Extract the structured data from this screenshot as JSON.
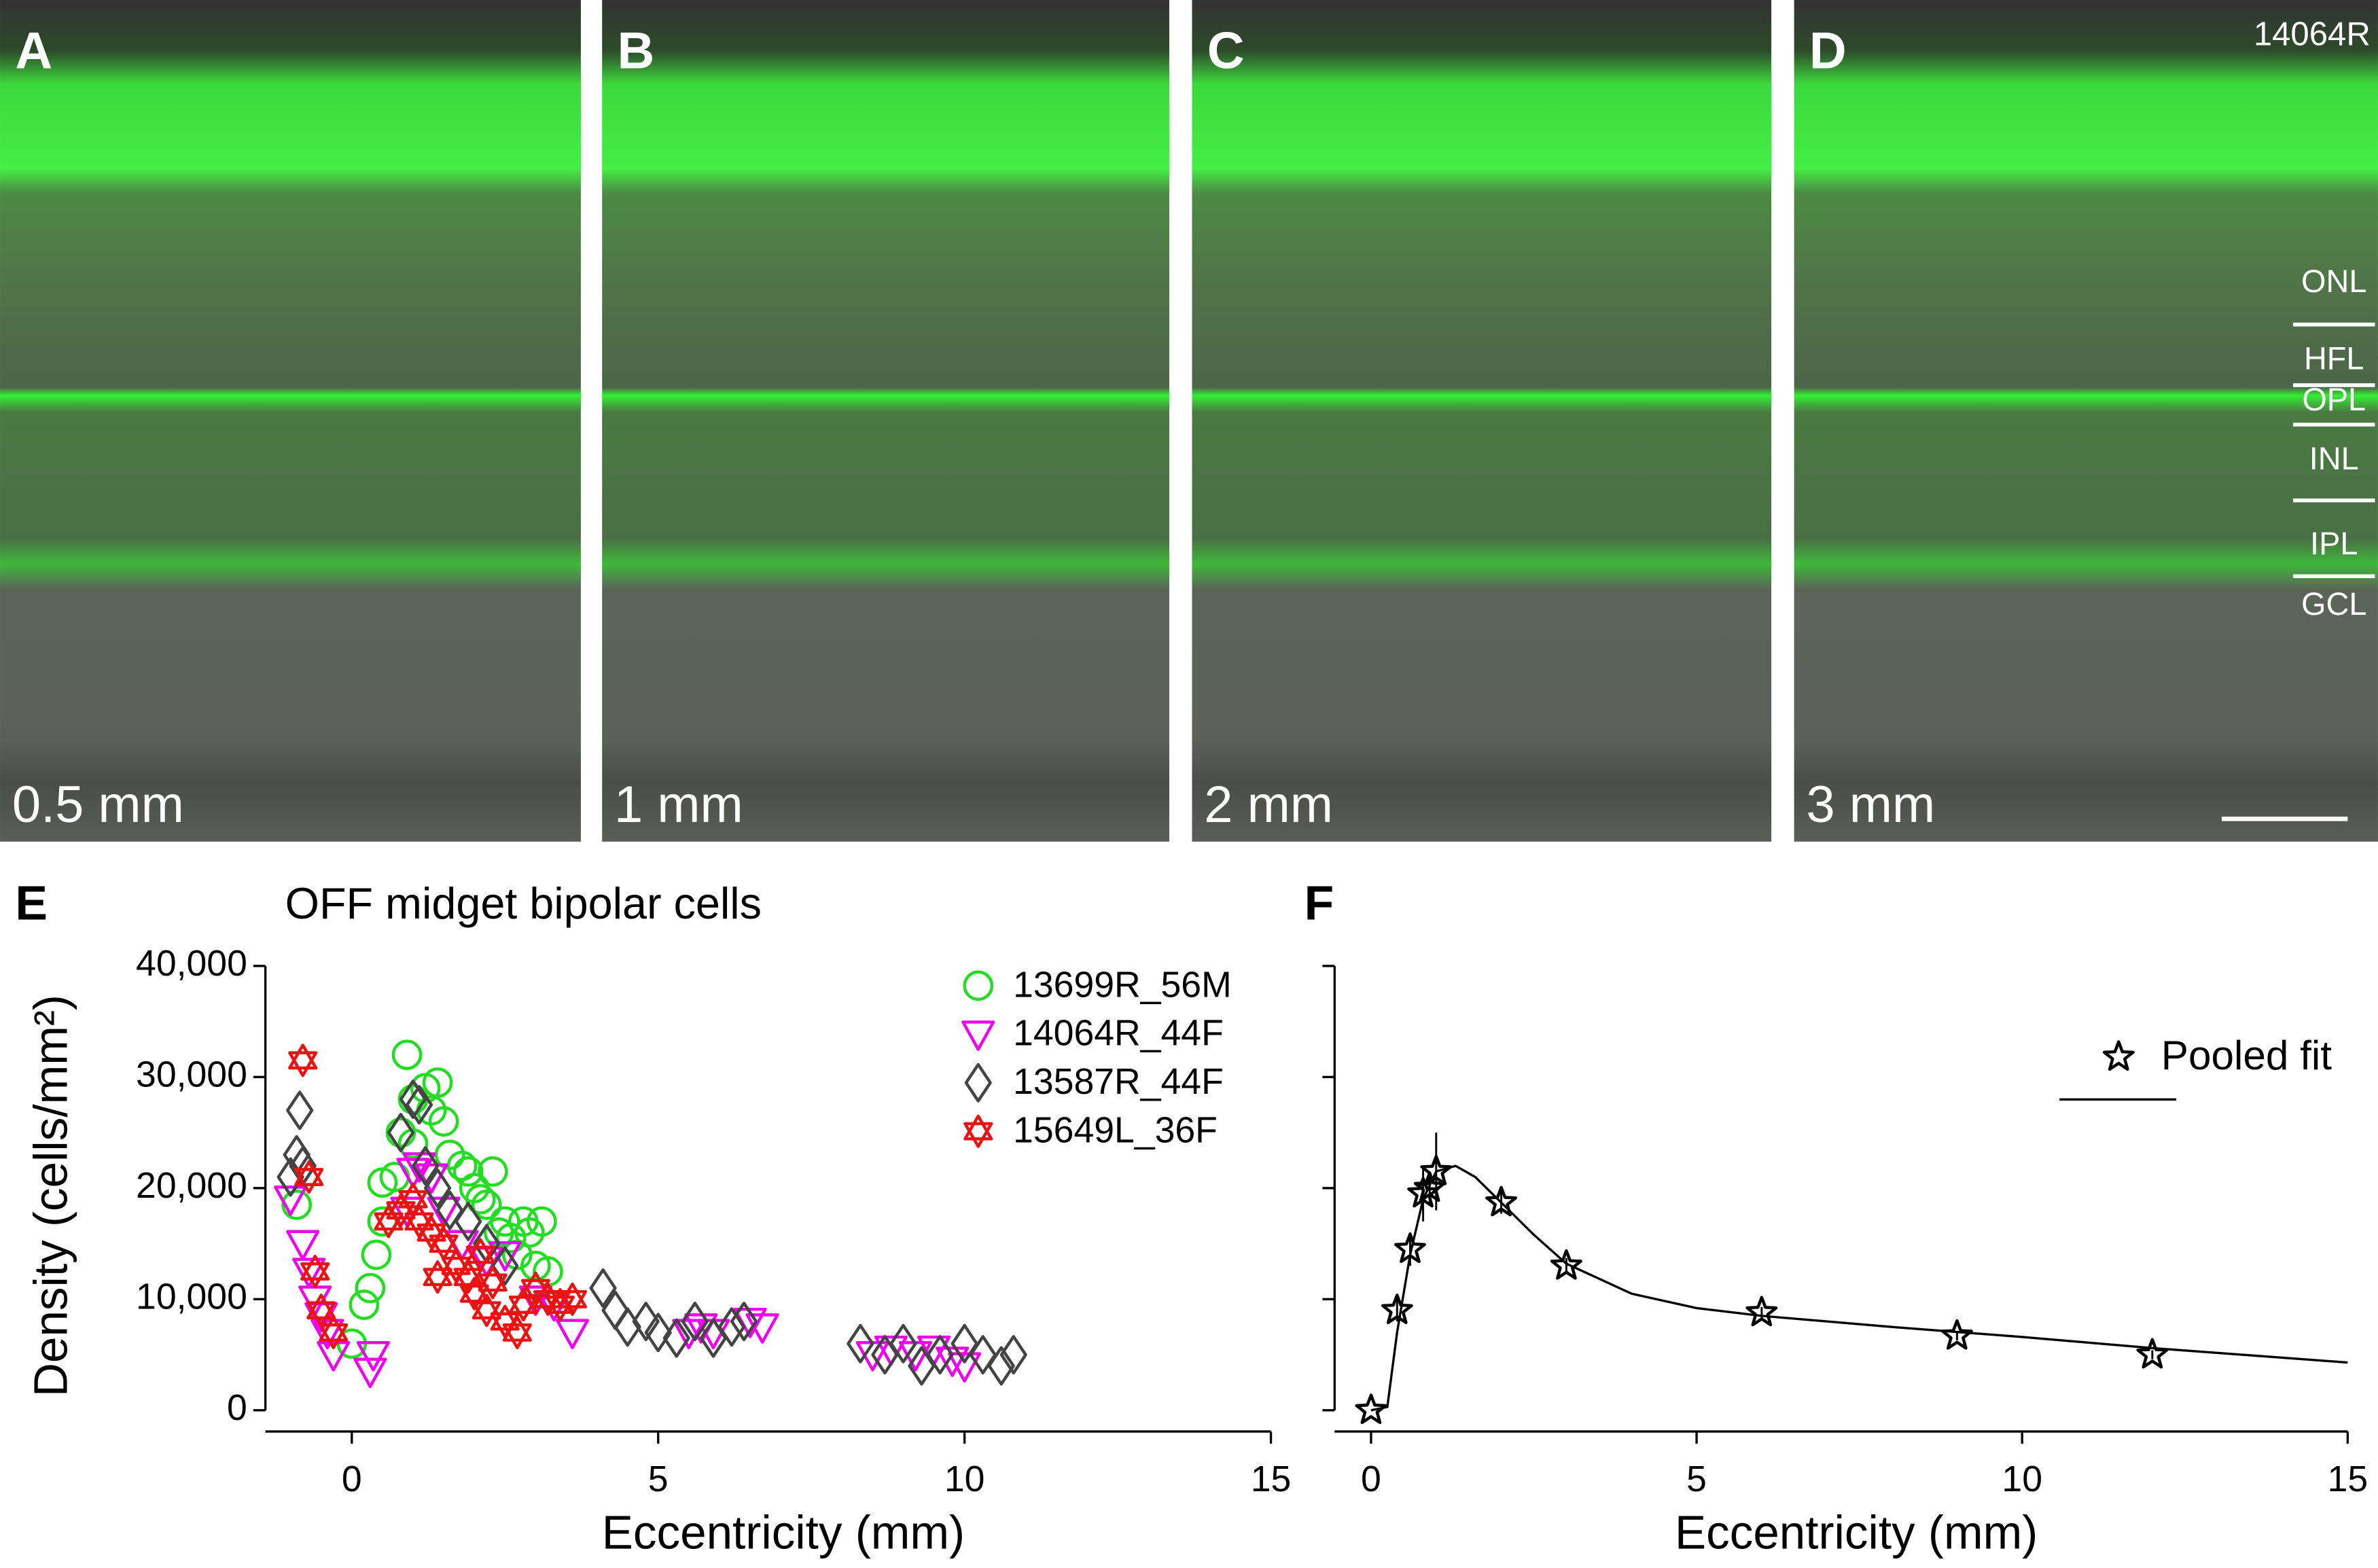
{
  "images": {
    "sample": "14064R",
    "panels": [
      {
        "letter": "A",
        "eccentricity": "0.5 mm"
      },
      {
        "letter": "B",
        "eccentricity": "1 mm"
      },
      {
        "letter": "C",
        "eccentricity": "2 mm"
      },
      {
        "letter": "D",
        "eccentricity": "3 mm"
      }
    ],
    "layers": [
      "ONL",
      "HFL",
      "OPL",
      "INL",
      "IPL",
      "GCL"
    ]
  },
  "chart_data": [
    {
      "type": "scatter",
      "panel": "E",
      "title": "OFF midget bipolar cells",
      "xlabel": "Eccentricity (mm)",
      "ylabel": "Density (cells/mm²)",
      "xlim": [
        -1.41,
        15
      ],
      "ylim": [
        0,
        40000
      ],
      "xticks": [
        0,
        5,
        10,
        15
      ],
      "yticks": [
        0,
        {
          "value": 10000,
          "label": "10,000"
        },
        {
          "value": 20000,
          "label": "20,000"
        },
        {
          "value": 30000,
          "label": "30,000"
        },
        {
          "value": 40000,
          "label": "40,000"
        }
      ],
      "legend": "upper right",
      "series": [
        {
          "name": "13699R_56M",
          "color": "#22dd22",
          "marker": "circle",
          "x": [
            -0.9,
            0,
            0.2,
            0.3,
            0.4,
            0.5,
            0.5,
            0.7,
            0.8,
            0.9,
            1,
            1,
            1.2,
            1.3,
            1.4,
            1.5,
            1.6,
            1.8,
            1.9,
            2,
            2.2,
            2.3,
            2.5,
            2.6,
            2.8,
            2.9,
            3.1,
            3,
            3.2,
            2.7,
            2.4,
            2.1
          ],
          "y": [
            18500,
            6000,
            9500,
            11000,
            14000,
            17000,
            20500,
            21000,
            25000,
            32000,
            28000,
            24000,
            29000,
            27000,
            29500,
            26000,
            23000,
            22000,
            21500,
            20000,
            18500,
            21500,
            17000,
            15500,
            17000,
            16000,
            17000,
            13000,
            12500,
            14000,
            16000,
            19000
          ]
        },
        {
          "name": "14064R_44F",
          "color": "#ee00ee",
          "marker": "triangle-down",
          "x": [
            -1,
            -0.8,
            -0.7,
            -0.6,
            -0.5,
            -0.4,
            -0.3,
            0.3,
            0.35,
            0.9,
            1,
            1.1,
            1.3,
            1.5,
            1.8,
            2.2,
            2.5,
            3,
            3.3,
            3.6,
            5.5,
            5.7,
            5.9,
            6.5,
            6.7,
            8.5,
            8.8,
            9.2,
            9.5,
            9.8,
            10
          ],
          "y": [
            19000,
            15000,
            12500,
            10000,
            8500,
            7000,
            5000,
            3500,
            5000,
            18000,
            21500,
            22000,
            21000,
            18000,
            15000,
            13500,
            14000,
            10000,
            9500,
            7000,
            7000,
            7500,
            7000,
            8000,
            7500,
            5000,
            5500,
            5000,
            5500,
            4500,
            4000
          ]
        },
        {
          "name": "13587R_44F",
          "color": "#444444",
          "marker": "diamond",
          "x": [
            -1,
            -0.9,
            -0.85,
            -0.8,
            0.8,
            1,
            1.1,
            1.2,
            1.4,
            1.6,
            1.9,
            2.2,
            2.5,
            4.1,
            4.3,
            4.5,
            4.8,
            5,
            5.3,
            5.6,
            5.9,
            6.2,
            6.4,
            8.3,
            8.7,
            9,
            9.3,
            9.6,
            10,
            10.3,
            10.6,
            10.8
          ],
          "y": [
            21000,
            23000,
            27000,
            22000,
            25000,
            28000,
            27500,
            22000,
            20000,
            18000,
            17000,
            15000,
            13000,
            11000,
            9000,
            7500,
            8000,
            7000,
            6500,
            8000,
            6500,
            7500,
            8000,
            6000,
            5000,
            6000,
            4000,
            5000,
            6000,
            5000,
            4000,
            5000
          ]
        },
        {
          "name": "15649L_36F",
          "color": "#ee1111",
          "marker": "hexagram",
          "x": [
            -0.8,
            -0.7,
            -0.6,
            -0.5,
            -0.3,
            0.6,
            0.8,
            1,
            1.1,
            1.3,
            1.5,
            1.7,
            1.9,
            2,
            2.2,
            2.3,
            2.5,
            2.7,
            2.8,
            3,
            3.2,
            3.4,
            3.6,
            2.1,
            1.4
          ],
          "y": [
            31500,
            21000,
            12500,
            9000,
            7000,
            17000,
            18000,
            19000,
            17000,
            16000,
            15000,
            13000,
            12000,
            10500,
            9000,
            11500,
            8000,
            7000,
            9500,
            11000,
            10000,
            9500,
            10000,
            14000,
            12000
          ]
        }
      ]
    },
    {
      "type": "scatter",
      "panel": "F",
      "xlabel": "Eccentricity (mm)",
      "xlim": [
        -0.56,
        15
      ],
      "ylim": [
        0,
        40000
      ],
      "xticks": [
        0,
        5,
        10,
        15
      ],
      "yticks": [
        0,
        10000,
        20000,
        30000,
        40000
      ],
      "ytick_labels": false,
      "legend": "upper right",
      "series": [
        {
          "name": "Pooled fit",
          "color": "#000000",
          "marker": "star",
          "x": [
            0,
            0.4,
            0.6,
            0.8,
            0.9,
            1,
            2,
            3,
            6,
            9,
            12
          ],
          "y": [
            0,
            9000,
            14500,
            19500,
            20000,
            21500,
            18700,
            13000,
            8800,
            6700,
            5000
          ],
          "errors": [
            0,
            1000,
            1500,
            2500,
            1500,
            3500,
            1000,
            700,
            500,
            400,
            400
          ],
          "fit": {
            "x": [
              0,
              0.25,
              0.4,
              0.6,
              0.8,
              1,
              1.3,
              1.6,
              2,
              2.5,
              3,
              4,
              5,
              6,
              8,
              10,
              12,
              15
            ],
            "y": [
              0,
              300,
              7000,
              14000,
              19000,
              21500,
              22000,
              21000,
              18700,
              15800,
              13200,
              10500,
              9200,
              8500,
              7500,
              6600,
              5600,
              4300
            ]
          }
        }
      ]
    }
  ]
}
